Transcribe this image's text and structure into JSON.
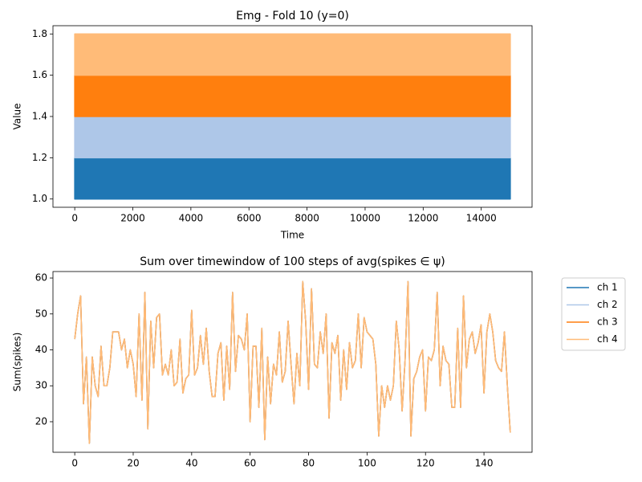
{
  "chart_data": [
    {
      "type": "band",
      "title": "Emg - Fold 10 (y=0)",
      "xlabel": "Time",
      "ylabel": "Value",
      "x": [
        0,
        15000
      ],
      "series": [
        {
          "color": "#1f77b4",
          "values": [
            1.0,
            1.2
          ]
        },
        {
          "color": "#aec7e8",
          "values": [
            1.2,
            1.4
          ]
        },
        {
          "color": "#ff7f0e",
          "values": [
            1.4,
            1.6
          ]
        },
        {
          "color": "#ffbb78",
          "values": [
            1.6,
            1.8
          ]
        }
      ],
      "xlim": [
        -750,
        15750
      ],
      "xticks": [
        0,
        2000,
        4000,
        6000,
        8000,
        10000,
        12000,
        14000
      ],
      "ylim": [
        0.96,
        1.84
      ],
      "yticks": [
        {
          "value": 1.0,
          "label": "1.0"
        },
        {
          "value": 1.2,
          "label": "1.2"
        },
        {
          "value": 1.4,
          "label": "1.4"
        },
        {
          "value": 1.6,
          "label": "1.6"
        },
        {
          "value": 1.8,
          "label": "1.8"
        }
      ]
    },
    {
      "type": "line",
      "title": "Sum over timewindow of 100 steps of avg(spikes ∈ ψ)",
      "ylabel": "Sum(spikes)",
      "legend": "outside right",
      "x": [
        0,
        1,
        2,
        3,
        4,
        5,
        6,
        7,
        8,
        9,
        10,
        11,
        12,
        13,
        14,
        15,
        16,
        17,
        18,
        19,
        20,
        21,
        22,
        23,
        24,
        25,
        26,
        27,
        28,
        29,
        30,
        31,
        32,
        33,
        34,
        35,
        36,
        37,
        38,
        39,
        40,
        41,
        42,
        43,
        44,
        45,
        46,
        47,
        48,
        49,
        50,
        51,
        52,
        53,
        54,
        55,
        56,
        57,
        58,
        59,
        60,
        61,
        62,
        63,
        64,
        65,
        66,
        67,
        68,
        69,
        70,
        71,
        72,
        73,
        74,
        75,
        76,
        77,
        78,
        79,
        80,
        81,
        82,
        83,
        84,
        85,
        86,
        87,
        88,
        89,
        90,
        91,
        92,
        93,
        94,
        95,
        96,
        97,
        98,
        99,
        100,
        101,
        102,
        103,
        104,
        105,
        106,
        107,
        108,
        109,
        110,
        111,
        112,
        113,
        114,
        115,
        116,
        117,
        118,
        119,
        120,
        121,
        122,
        123,
        124,
        125,
        126,
        127,
        128,
        129,
        130,
        131,
        132,
        133,
        134,
        135,
        136,
        137,
        138,
        139,
        140,
        141,
        142,
        143,
        144,
        145,
        146,
        147,
        148,
        149
      ],
      "series": [
        {
          "name": "ch 1",
          "color": "#1f77b4",
          "values": [
            43,
            50,
            55,
            25,
            38,
            14,
            38,
            30,
            27,
            41,
            30,
            30,
            35,
            45,
            45,
            45,
            40,
            43,
            35,
            40,
            36,
            27,
            50,
            26,
            56,
            18,
            48,
            35,
            49,
            50,
            33,
            36,
            33,
            40,
            30,
            31,
            43,
            28,
            32,
            33,
            51,
            33,
            35,
            44,
            36,
            46,
            34,
            27,
            27,
            39,
            42,
            26,
            41,
            29,
            56,
            34,
            44,
            43,
            40,
            50,
            20,
            41,
            41,
            24,
            46,
            15,
            38,
            25,
            36,
            33,
            45,
            31,
            34,
            48,
            36,
            25,
            39,
            30,
            59,
            48,
            29,
            57,
            36,
            35,
            45,
            39,
            50,
            21,
            42,
            39,
            44,
            26,
            40,
            29,
            42,
            35,
            37,
            50,
            35,
            49,
            45,
            44,
            43,
            36,
            16,
            30,
            24,
            30,
            26,
            30,
            48,
            40,
            23,
            37,
            59,
            16,
            32,
            34,
            38,
            40,
            23,
            38,
            37,
            40,
            56,
            30,
            41,
            37,
            36,
            24,
            24,
            46,
            24,
            55,
            35,
            43,
            45,
            39,
            42,
            47,
            28,
            45,
            50,
            45,
            37,
            35,
            34,
            45,
            30,
            17
          ]
        },
        {
          "name": "ch 2",
          "color": "#aec7e8",
          "values": [
            43,
            50,
            55,
            25,
            38,
            14,
            38,
            30,
            27,
            41,
            30,
            30,
            35,
            45,
            45,
            45,
            40,
            43,
            35,
            40,
            36,
            27,
            50,
            26,
            56,
            18,
            48,
            35,
            49,
            50,
            33,
            36,
            33,
            40,
            30,
            31,
            43,
            28,
            32,
            33,
            51,
            33,
            35,
            44,
            36,
            46,
            34,
            27,
            27,
            39,
            42,
            26,
            41,
            29,
            56,
            34,
            44,
            43,
            40,
            50,
            20,
            41,
            41,
            24,
            46,
            15,
            38,
            25,
            36,
            33,
            45,
            31,
            34,
            48,
            36,
            25,
            39,
            30,
            59,
            48,
            29,
            57,
            36,
            35,
            45,
            39,
            50,
            21,
            42,
            39,
            44,
            26,
            40,
            29,
            42,
            35,
            37,
            50,
            35,
            49,
            45,
            44,
            43,
            36,
            16,
            30,
            24,
            30,
            26,
            30,
            48,
            40,
            23,
            37,
            59,
            16,
            32,
            34,
            38,
            40,
            23,
            38,
            37,
            40,
            56,
            30,
            41,
            37,
            36,
            24,
            24,
            46,
            24,
            55,
            35,
            43,
            45,
            39,
            42,
            47,
            28,
            45,
            50,
            45,
            37,
            35,
            34,
            45,
            30,
            17
          ]
        },
        {
          "name": "ch 3",
          "color": "#ff7f0e",
          "values": [
            43,
            50,
            55,
            25,
            38,
            14,
            38,
            30,
            27,
            41,
            30,
            30,
            35,
            45,
            45,
            45,
            40,
            43,
            35,
            40,
            36,
            27,
            50,
            26,
            56,
            18,
            48,
            35,
            49,
            50,
            33,
            36,
            33,
            40,
            30,
            31,
            43,
            28,
            32,
            33,
            51,
            33,
            35,
            44,
            36,
            46,
            34,
            27,
            27,
            39,
            42,
            26,
            41,
            29,
            56,
            34,
            44,
            43,
            40,
            50,
            20,
            41,
            41,
            24,
            46,
            15,
            38,
            25,
            36,
            33,
            45,
            31,
            34,
            48,
            36,
            25,
            39,
            30,
            59,
            48,
            29,
            57,
            36,
            35,
            45,
            39,
            50,
            21,
            42,
            39,
            44,
            26,
            40,
            29,
            42,
            35,
            37,
            50,
            35,
            49,
            45,
            44,
            43,
            36,
            16,
            30,
            24,
            30,
            26,
            30,
            48,
            40,
            23,
            37,
            59,
            16,
            32,
            34,
            38,
            40,
            23,
            38,
            37,
            40,
            56,
            30,
            41,
            37,
            36,
            24,
            24,
            46,
            24,
            55,
            35,
            43,
            45,
            39,
            42,
            47,
            28,
            45,
            50,
            45,
            37,
            35,
            34,
            45,
            30,
            17
          ]
        },
        {
          "name": "ch 4",
          "color": "#ffbb78",
          "values": [
            43,
            50,
            55,
            25,
            38,
            14,
            38,
            30,
            27,
            41,
            30,
            30,
            35,
            45,
            45,
            45,
            40,
            43,
            35,
            40,
            36,
            27,
            50,
            26,
            56,
            18,
            48,
            35,
            49,
            50,
            33,
            36,
            33,
            40,
            30,
            31,
            43,
            28,
            32,
            33,
            51,
            33,
            35,
            44,
            36,
            46,
            34,
            27,
            27,
            39,
            42,
            26,
            41,
            29,
            56,
            34,
            44,
            43,
            40,
            50,
            20,
            41,
            41,
            24,
            46,
            15,
            38,
            25,
            36,
            33,
            45,
            31,
            34,
            48,
            36,
            25,
            39,
            30,
            59,
            48,
            29,
            57,
            36,
            35,
            45,
            39,
            50,
            21,
            42,
            39,
            44,
            26,
            40,
            29,
            42,
            35,
            37,
            50,
            35,
            49,
            45,
            44,
            43,
            36,
            16,
            30,
            24,
            30,
            26,
            30,
            48,
            40,
            23,
            37,
            59,
            16,
            32,
            34,
            38,
            40,
            23,
            38,
            37,
            40,
            56,
            30,
            41,
            37,
            36,
            24,
            24,
            46,
            24,
            55,
            35,
            43,
            45,
            39,
            42,
            47,
            28,
            45,
            50,
            45,
            37,
            35,
            34,
            45,
            30,
            17
          ]
        }
      ],
      "xlim": [
        -7.45,
        156.45
      ],
      "xticks": [
        0,
        20,
        40,
        60,
        80,
        100,
        120,
        140
      ],
      "ylim": [
        11.5,
        61.8
      ],
      "yticks": [
        20,
        30,
        40,
        50,
        60
      ]
    }
  ]
}
